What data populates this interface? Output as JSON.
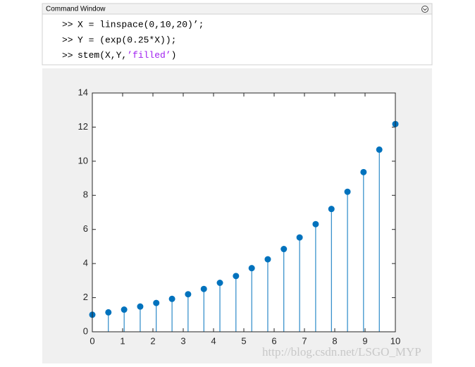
{
  "command_window": {
    "title": "Command Window",
    "lines": [
      {
        "prompt": ">>",
        "segments": [
          "X = linspace(0,10,20)’;"
        ]
      },
      {
        "prompt": ">>",
        "segments": [
          "Y = (exp(0.25*X));"
        ]
      },
      {
        "prompt": ">>",
        "segments": [
          "stem(X,Y,",
          "’filled’",
          ")"
        ]
      }
    ]
  },
  "chart_data": {
    "type": "stem",
    "color": "#0072bd",
    "marker": "filled",
    "x": [
      0,
      0.53,
      1.05,
      1.58,
      2.11,
      2.63,
      3.16,
      3.68,
      4.21,
      4.74,
      5.26,
      5.79,
      6.32,
      6.84,
      7.37,
      7.89,
      8.42,
      8.95,
      9.47,
      10
    ],
    "values": [
      1,
      1.14,
      1.3,
      1.48,
      1.69,
      1.93,
      2.2,
      2.51,
      2.87,
      3.27,
      3.73,
      4.25,
      4.85,
      5.53,
      6.31,
      7.2,
      8.21,
      9.36,
      10.68,
      12.18
    ],
    "xlim": [
      0,
      10
    ],
    "xticks": [
      0,
      1,
      2,
      3,
      4,
      5,
      6,
      7,
      8,
      9,
      10
    ],
    "ylim": [
      0,
      14
    ],
    "yticks": [
      0,
      2,
      4,
      6,
      8,
      10,
      12,
      14
    ]
  },
  "watermark": "http://blog.csdn.net/LSGO_MYP"
}
